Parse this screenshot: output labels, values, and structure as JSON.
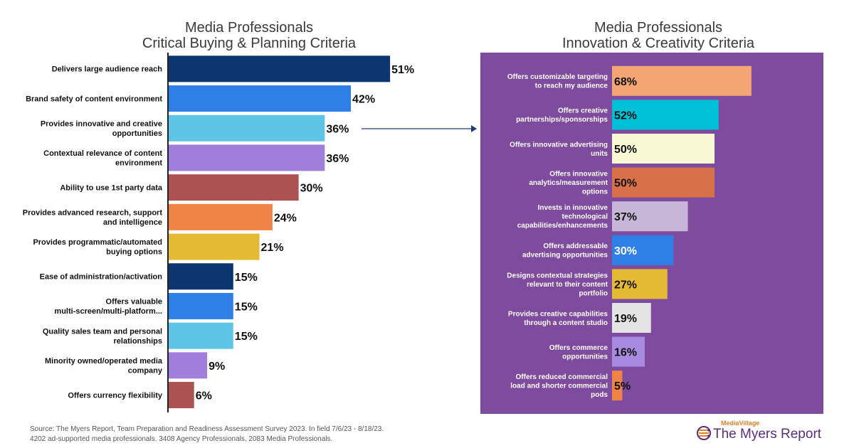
{
  "chart_data": [
    {
      "type": "bar",
      "orientation": "horizontal",
      "title": "Media Professionals\nCritical Buying & Planning Criteria",
      "title_lines": [
        "Media Professionals",
        "Critical Buying & Planning Criteria"
      ],
      "categories": [
        "Delivers large audience reach",
        "Brand safety of content environment",
        "Provides innovative and creative opportunities",
        "Contextual relevance of content environment",
        "Ability to use 1st party data",
        "Provides advanced research, support and intelligence",
        "Provides programmatic/automated buying options",
        "Ease of administration/activation",
        "Offers valuable multi-screen/multi-platform...",
        "Quality sales team and personal relationships",
        "Minority owned/operated media company",
        "Offers currency flexibility"
      ],
      "label_lines": [
        [
          "Delivers large audience reach"
        ],
        [
          "Brand safety of content environment"
        ],
        [
          "Provides innovative and creative",
          "opportunities"
        ],
        [
          "Contextual relevance of content",
          "environment"
        ],
        [
          "Ability to use 1st party data"
        ],
        [
          "Provides advanced research, support",
          "and intelligence"
        ],
        [
          "Provides programmatic/automated",
          "buying options"
        ],
        [
          "Ease of administration/activation"
        ],
        [
          "Offers valuable",
          "multi-screen/multi-platform..."
        ],
        [
          "Quality sales team and personal",
          "relationships"
        ],
        [
          "Minority owned/operated media",
          "company"
        ],
        [
          "Offers currency flexibility"
        ]
      ],
      "values": [
        51,
        42,
        36,
        36,
        30,
        24,
        21,
        15,
        15,
        15,
        9,
        6
      ],
      "value_labels": [
        "51%",
        "42%",
        "36%",
        "36%",
        "30%",
        "24%",
        "21%",
        "15%",
        "15%",
        "15%",
        "9%",
        "6%"
      ],
      "colors": [
        "#0d3670",
        "#2e80e6",
        "#5ec4e6",
        "#a07fdc",
        "#ad5252",
        "#f08447",
        "#e4b934",
        "#0d3670",
        "#2e80e6",
        "#5ec4e6",
        "#a07fdc",
        "#ad5252"
      ],
      "xlim": [
        0,
        100
      ],
      "grid": false,
      "legend": "none"
    },
    {
      "type": "bar",
      "orientation": "horizontal",
      "title": "Media Professionals\nInnovation & Creativity Criteria",
      "title_lines": [
        "Media Professionals",
        "Innovation & Creativity Criteria"
      ],
      "categories": [
        "Offers customizable targeting to reach my audience",
        "Offers creative partnerships/sponsorships",
        "Offers innovative advertising units",
        "Offers innovative analytics/measurement options",
        "Invests in innovative technological capabilities/enhancements",
        "Offers addressable advertising opportunities",
        "Designs contextual strategies relevant to their content portfolio",
        "Provides creative capabilities through a content studio",
        "Offers commerce opportunities",
        "Offers reduced commercial load and shorter commercial pods"
      ],
      "label_lines": [
        [
          "Offers customizable targeting",
          "to reach my audience"
        ],
        [
          "Offers creative",
          "partnerships/sponsorships"
        ],
        [
          "Offers innovative advertising",
          "units"
        ],
        [
          "Offers innovative",
          "analytics/measurement",
          "options"
        ],
        [
          "Invests in innovative",
          "technological",
          "capabilities/enhancements"
        ],
        [
          "Offers addressable",
          "advertising opportunities"
        ],
        [
          "Designs contextual strategies",
          "relevant to their content",
          "portfolio"
        ],
        [
          "Provides creative capabilities",
          "through a content studio"
        ],
        [
          "Offers commerce",
          "opportunities"
        ],
        [
          "Offers reduced commercial",
          "load and shorter commercial",
          "pods"
        ]
      ],
      "values": [
        68,
        52,
        50,
        50,
        37,
        30,
        27,
        19,
        16,
        5
      ],
      "value_labels": [
        "68%",
        "52%",
        "50%",
        "50%",
        "37%",
        "30%",
        "27%",
        "19%",
        "16%",
        "5%"
      ],
      "colors": [
        "#f4a574",
        "#00c0d8",
        "#f8f8d4",
        "#d8704a",
        "#c8b6d8",
        "#2e80e6",
        "#e4b934",
        "#e4e4e4",
        "#a88ae0",
        "#f08447"
      ],
      "value_label_colors": [
        "#111111",
        "#111111",
        "#111111",
        "#111111",
        "#111111",
        "#ffffff",
        "#111111",
        "#111111",
        "#111111",
        "#111111"
      ],
      "background": "#7e4b9e",
      "xlim": [
        0,
        100
      ],
      "grid": false,
      "legend": "none"
    }
  ],
  "footer": {
    "line1": "Source: The Myers Report, Team Preparation and Readiness  Assessment Survey 2023.  In field 7/6/23 - 8/18/23.",
    "line2": "4202 ad-supported media professionals. 3408 Agency Professionals, 2083 Media Professionals."
  },
  "logo": {
    "small_text": "MediaVillage",
    "main_text": "The Myers Report"
  },
  "colors": {
    "arrow": "#1f3b73",
    "axis": "#222222",
    "title": "#3a3a3a",
    "logo_orange": "#e0822a",
    "logo_purple": "#5a2e7e"
  }
}
